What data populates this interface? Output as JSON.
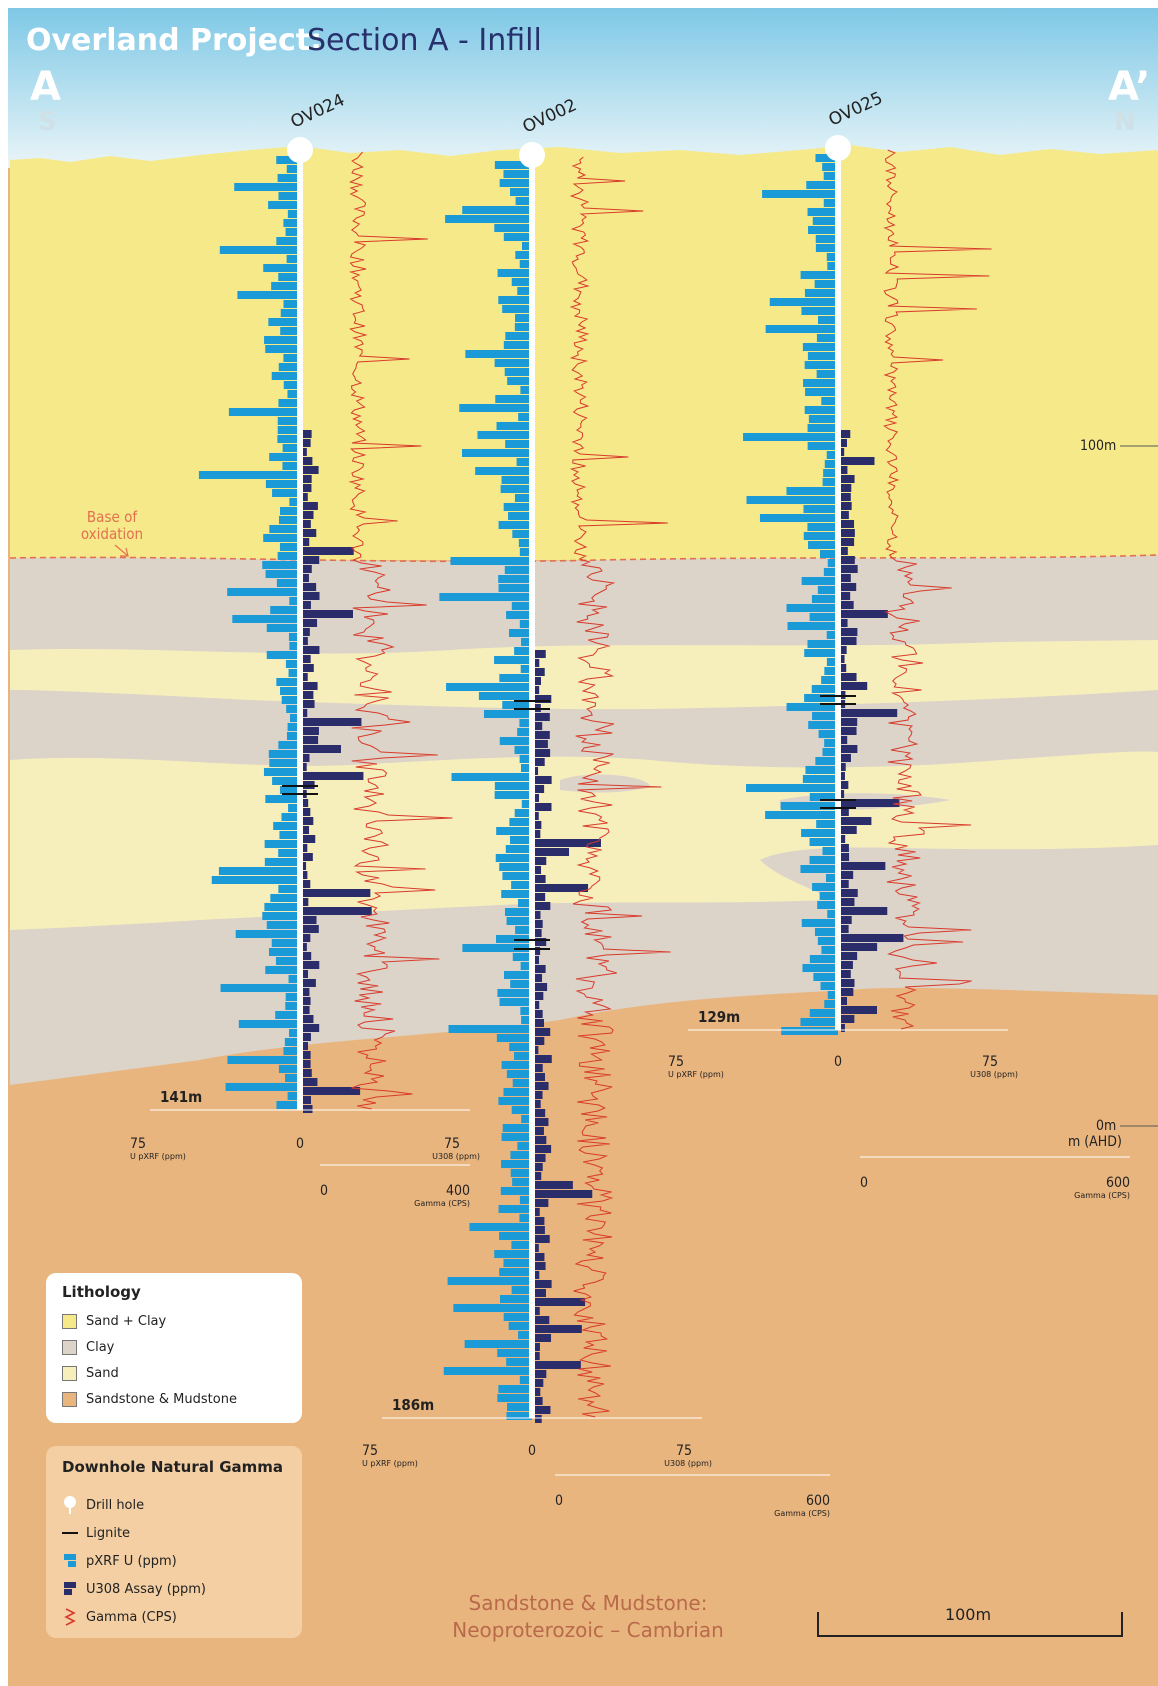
{
  "title": {
    "project": "Overland Project:",
    "section": "Section A - Infill"
  },
  "endpoints": {
    "left": {
      "letter": "A",
      "direction": "S"
    },
    "right": {
      "letter": "A’",
      "direction": "N"
    }
  },
  "labels": {
    "base_of_oxidation": [
      "Base of",
      "oxidation"
    ],
    "depth_100": "100m",
    "datum": "0m",
    "datum_unit": "m (AHD)",
    "basement": [
      "Sandstone & Mudstone:",
      "Neoproterozoic – Cambrian"
    ],
    "scale_bar": "100m"
  },
  "colors": {
    "sky_top": "#7ec8e6",
    "sky_bottom": "#e9f4f7",
    "sand_clay": "#f6e98a",
    "clay": "#dcd3c9",
    "sand": "#f6efbc",
    "sandstone": "#e9b57f",
    "pxrf": "#1a9ad6",
    "u3o8": "#2b2d6b",
    "gamma": "#d83a2b",
    "title_white": "#ffffff",
    "title_navy": "#27306a"
  },
  "holes": [
    {
      "id": "OV024",
      "depth": "141m",
      "axes": {
        "pxrf_max": "75",
        "pxrf_label": "U pXRF (ppm)",
        "zero": "0",
        "u3o8_max": "75",
        "u3o8_label": "U308 (ppm)",
        "gamma_min": "0",
        "gamma_max": "400",
        "gamma_label": "Gamma (CPS)"
      }
    },
    {
      "id": "OV002",
      "depth": "186m",
      "axes": {
        "pxrf_max": "75",
        "pxrf_label": "U pXRF (ppm)",
        "zero": "0",
        "u3o8_max": "75",
        "u3o8_label": "U308 (ppm)",
        "gamma_min": "0",
        "gamma_max": "600",
        "gamma_label": "Gamma (CPS)"
      }
    },
    {
      "id": "OV025",
      "depth": "129m",
      "axes": {
        "pxrf_max": "75",
        "pxrf_label": "U pXRF (ppm)",
        "zero": "0",
        "u3o8_max": "75",
        "u3o8_label": "U308 (ppm)",
        "gamma_min": "0",
        "gamma_max": "600",
        "gamma_label": "Gamma (CPS)"
      }
    }
  ],
  "legend_lithology": {
    "title": "Lithology",
    "items": [
      {
        "label": "Sand + Clay",
        "swatch": "sand_clay"
      },
      {
        "label": "Clay",
        "swatch": "clay"
      },
      {
        "label": "Sand",
        "swatch": "sand"
      },
      {
        "label": "Sandstone & Mudstone",
        "swatch": "sandstone"
      }
    ]
  },
  "legend_gamma": {
    "title": "Downhole Natural Gamma",
    "items": [
      {
        "label": "Drill hole",
        "icon": "drill-hole-icon"
      },
      {
        "label": "Lignite",
        "icon": "lignite-icon"
      },
      {
        "label": "pXRF U (ppm)",
        "icon": "pxrf-icon"
      },
      {
        "label": "U308 Assay (ppm)",
        "icon": "u3o8-icon"
      },
      {
        "label": "Gamma (CPS)",
        "icon": "gamma-icon"
      }
    ]
  }
}
